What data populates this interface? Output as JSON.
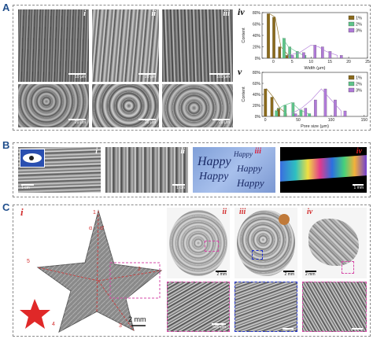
{
  "figure": {
    "panel_labels": {
      "a": "A",
      "b": "B",
      "c": "C"
    },
    "a": {
      "sub_labels": [
        "i",
        "ii",
        "iii",
        "iv",
        "v"
      ],
      "scales_top": [
        "10 μm",
        "20 μm",
        "100 μm"
      ],
      "scales_bottom": [
        "20 μm",
        "20 μm",
        "20 μm"
      ]
    },
    "b": {
      "sub_labels": [
        "i",
        "ii",
        "iii",
        "iv"
      ],
      "scales": [
        "1 cm",
        "1 cm",
        "1 mm"
      ],
      "handwriting": [
        "Happy",
        "Happy",
        "Happy",
        "Happy",
        "Happy"
      ]
    },
    "c": {
      "sub_labels": [
        "i",
        "ii",
        "iii",
        "iv"
      ],
      "star_numbers": [
        "1",
        "2",
        "3",
        "4",
        "5"
      ],
      "angle_labels": [
        "α",
        "α'"
      ],
      "star_scale": "2 mm",
      "scales_top": [
        "2 mm",
        "2 mm",
        "2 mm"
      ],
      "scales_bottom": [
        "500 μm",
        "",
        ""
      ]
    }
  },
  "chart_data": [
    {
      "type": "bar",
      "panel": "iv",
      "xlabel": "Width (μm)",
      "ylabel": "Content",
      "xticks": [
        "0",
        "5",
        "10",
        "15",
        "20",
        "25"
      ],
      "xlim": [
        -3,
        25
      ],
      "ylim": [
        0,
        0.8
      ],
      "yticks": [
        "0%",
        "20%",
        "40%",
        "60%",
        "80%"
      ],
      "legend_position": "top-right",
      "series": [
        {
          "name": "1%",
          "color": "#8a6a1c",
          "x": [
            -1,
            0.5,
            2,
            4
          ],
          "values": [
            0.78,
            0.72,
            0.2,
            0.05
          ]
        },
        {
          "name": "2%",
          "color": "#5fc48a",
          "x": [
            2.5,
            4,
            6,
            8
          ],
          "values": [
            0.35,
            0.2,
            0.12,
            0.05
          ]
        },
        {
          "name": "3%",
          "color": "#b07ad8",
          "x": [
            4,
            7,
            10,
            12,
            14,
            17
          ],
          "values": [
            0.05,
            0.1,
            0.23,
            0.2,
            0.12,
            0.05
          ]
        }
      ]
    },
    {
      "type": "bar",
      "panel": "v",
      "xlabel": "Pore size (μm)",
      "ylabel": "Content",
      "xticks": [
        "0",
        "50",
        "100",
        "150"
      ],
      "xlim": [
        -5,
        155
      ],
      "ylim": [
        0,
        0.8
      ],
      "yticks": [
        "0%",
        "20%",
        "40%",
        "60%",
        "80%"
      ],
      "legend_position": "top-right",
      "series": [
        {
          "name": "1%",
          "color": "#8a6a1c",
          "x": [
            2,
            12,
            22,
            32
          ],
          "values": [
            0.5,
            0.35,
            0.15,
            0.05
          ]
        },
        {
          "name": "2%",
          "color": "#5fc48a",
          "x": [
            15,
            28,
            40,
            52,
            65
          ],
          "values": [
            0.1,
            0.2,
            0.25,
            0.12,
            0.05
          ]
        },
        {
          "name": "3%",
          "color": "#b07ad8",
          "x": [
            40,
            55,
            70,
            85,
            100,
            115
          ],
          "values": [
            0.05,
            0.15,
            0.3,
            0.5,
            0.3,
            0.1
          ]
        }
      ]
    }
  ]
}
